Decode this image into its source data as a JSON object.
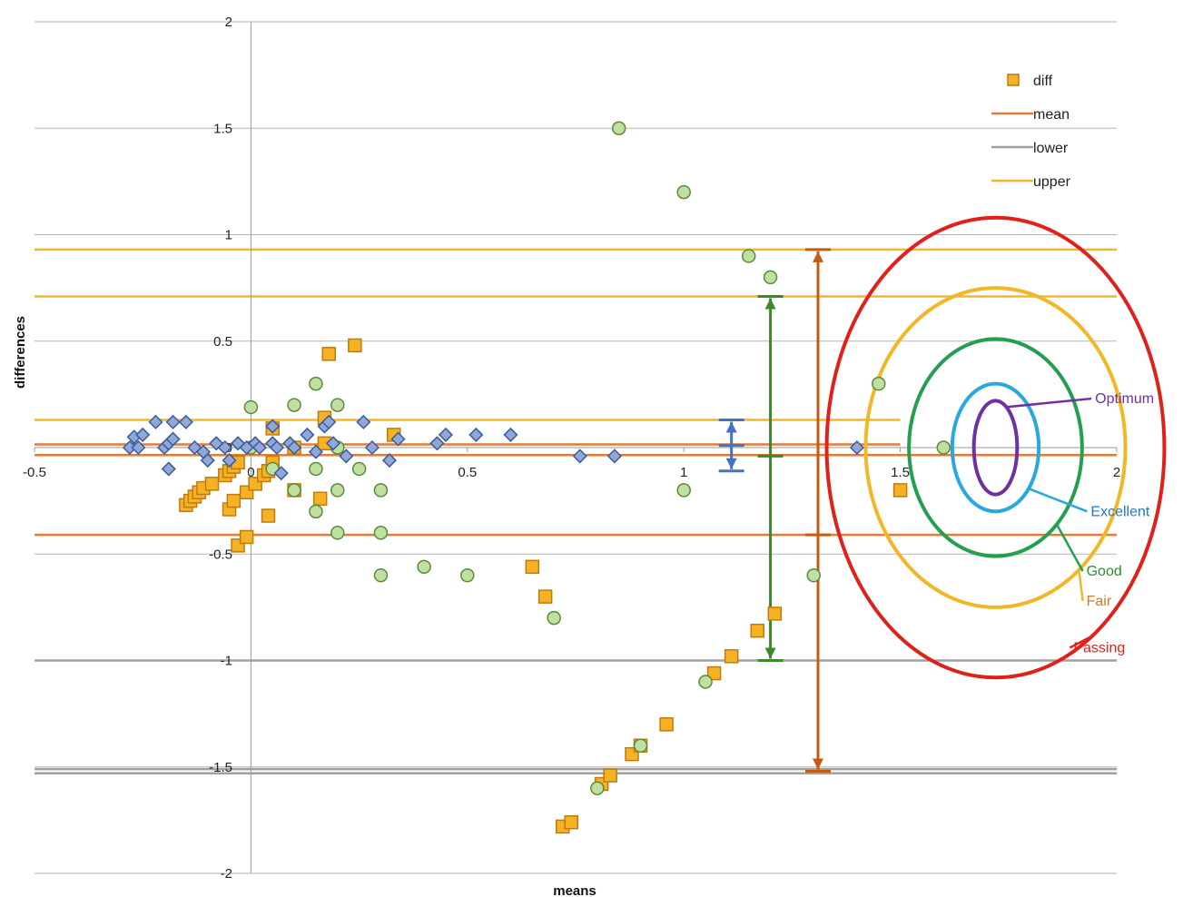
{
  "chart_data": {
    "type": "scatter",
    "xlabel": "means",
    "ylabel": "differences",
    "xlim": [
      -0.5,
      2
    ],
    "ylim": [
      -2,
      2
    ],
    "x_ticks": [
      "-0.5",
      "0",
      "0.5",
      "1",
      "1.5",
      "2"
    ],
    "y_ticks": [
      "2",
      "1.5",
      "1",
      "0.5",
      "0",
      "-0.5",
      "-1",
      "-1.5",
      "-2"
    ],
    "grid": true,
    "legend": {
      "position": "top-right",
      "entries": [
        {
          "label": "diff",
          "marker": "square",
          "color": "#f5b324"
        },
        {
          "label": "mean",
          "marker": "line",
          "color": "#e07b39"
        },
        {
          "label": "lower",
          "marker": "line",
          "color": "#a0a0a0"
        },
        {
          "label": "upper",
          "marker": "line",
          "color": "#f2b726"
        }
      ]
    },
    "reference_lines": [
      {
        "color": "#f2b726",
        "y": 0.93,
        "x_from": -0.5,
        "x_to": 2
      },
      {
        "color": "#f2b726",
        "y": 0.71,
        "x_from": -0.5,
        "x_to": 2
      },
      {
        "color": "#f2b726",
        "y": 0.13,
        "x_from": -0.5,
        "x_to": 1.5
      },
      {
        "color": "#e07b39",
        "y": 0.015,
        "x_from": -0.5,
        "x_to": 1.5
      },
      {
        "color": "#e07b39",
        "y": -0.035,
        "x_from": -0.5,
        "x_to": 2
      },
      {
        "color": "#e07b39",
        "y": -0.41,
        "x_from": -0.5,
        "x_to": 2
      },
      {
        "color": "#a0a0a0",
        "y": -1.0,
        "x_from": -0.5,
        "x_to": 2
      },
      {
        "color": "#a0a0a0",
        "y": -1.51,
        "x_from": -0.5,
        "x_to": 2
      },
      {
        "color": "#a0a0a0",
        "y": -1.53,
        "x_from": -0.5,
        "x_to": 2
      }
    ],
    "series": [
      {
        "name": "diff",
        "marker": "square",
        "fill": "#f5b324",
        "stroke": "#c07a10",
        "points": [
          [
            -0.15,
            -0.27
          ],
          [
            -0.14,
            -0.25
          ],
          [
            -0.13,
            -0.23
          ],
          [
            -0.12,
            -0.21
          ],
          [
            -0.11,
            -0.19
          ],
          [
            -0.09,
            -0.17
          ],
          [
            -0.06,
            -0.13
          ],
          [
            -0.05,
            -0.11
          ],
          [
            -0.04,
            -0.09
          ],
          [
            -0.03,
            -0.07
          ],
          [
            -0.05,
            -0.29
          ],
          [
            -0.04,
            -0.25
          ],
          [
            -0.01,
            -0.21
          ],
          [
            0.01,
            -0.17
          ],
          [
            0.03,
            -0.13
          ],
          [
            0.04,
            -0.11
          ],
          [
            0.05,
            -0.07
          ],
          [
            0.1,
            -0.2
          ],
          [
            0.04,
            -0.32
          ],
          [
            -0.03,
            -0.46
          ],
          [
            -0.01,
            -0.42
          ],
          [
            0.05,
            0.09
          ],
          [
            0.1,
            0.0
          ],
          [
            0.17,
            0.02
          ],
          [
            0.16,
            -0.24
          ],
          [
            0.17,
            0.14
          ],
          [
            0.18,
            0.44
          ],
          [
            0.24,
            0.48
          ],
          [
            0.33,
            0.06
          ],
          [
            0.65,
            -0.56
          ],
          [
            0.68,
            -0.7
          ],
          [
            0.72,
            -1.78
          ],
          [
            0.74,
            -1.76
          ],
          [
            0.81,
            -1.58
          ],
          [
            0.83,
            -1.54
          ],
          [
            0.88,
            -1.44
          ],
          [
            0.9,
            -1.4
          ],
          [
            0.96,
            -1.3
          ],
          [
            1.07,
            -1.06
          ],
          [
            1.11,
            -0.98
          ],
          [
            1.17,
            -0.86
          ],
          [
            1.21,
            -0.78
          ],
          [
            1.5,
            -0.2
          ]
        ]
      },
      {
        "marker": "circle",
        "fill": "#bfe0a0",
        "stroke": "#5a8a3a",
        "points": [
          [
            0.0,
            0.19
          ],
          [
            0.0,
            0.0
          ],
          [
            0.05,
            -0.1
          ],
          [
            0.1,
            0.2
          ],
          [
            0.1,
            -0.2
          ],
          [
            0.15,
            0.3
          ],
          [
            0.15,
            -0.1
          ],
          [
            0.15,
            -0.3
          ],
          [
            0.2,
            0.2
          ],
          [
            0.2,
            0.0
          ],
          [
            0.2,
            -0.2
          ],
          [
            0.2,
            -0.4
          ],
          [
            0.25,
            -0.1
          ],
          [
            0.3,
            -0.2
          ],
          [
            0.3,
            -0.4
          ],
          [
            0.3,
            -0.6
          ],
          [
            0.4,
            -0.56
          ],
          [
            0.5,
            -0.6
          ],
          [
            0.7,
            -0.8
          ],
          [
            0.85,
            1.5
          ],
          [
            1.0,
            1.2
          ],
          [
            1.0,
            -0.2
          ],
          [
            1.05,
            -1.1
          ],
          [
            1.15,
            0.9
          ],
          [
            1.2,
            0.8
          ],
          [
            1.3,
            -0.6
          ],
          [
            1.45,
            0.3
          ],
          [
            1.6,
            0.0
          ],
          [
            0.8,
            -1.6
          ],
          [
            0.9,
            -1.4
          ]
        ]
      },
      {
        "marker": "diamond",
        "fill": "#8fa8d8",
        "stroke": "#3a5a9a",
        "points": [
          [
            -0.28,
            0.0
          ],
          [
            -0.27,
            0.05
          ],
          [
            -0.26,
            0.0
          ],
          [
            -0.25,
            0.06
          ],
          [
            -0.22,
            0.12
          ],
          [
            -0.2,
            0.0
          ],
          [
            -0.19,
            0.02
          ],
          [
            -0.19,
            -0.1
          ],
          [
            -0.18,
            0.04
          ],
          [
            -0.18,
            0.12
          ],
          [
            -0.15,
            0.12
          ],
          [
            -0.13,
            0.0
          ],
          [
            -0.11,
            -0.02
          ],
          [
            -0.1,
            -0.06
          ],
          [
            -0.08,
            0.02
          ],
          [
            -0.06,
            0.0
          ],
          [
            -0.05,
            -0.06
          ],
          [
            -0.03,
            0.02
          ],
          [
            -0.01,
            0.0
          ],
          [
            0.01,
            0.02
          ],
          [
            0.02,
            0.0
          ],
          [
            0.05,
            0.02
          ],
          [
            0.05,
            0.1
          ],
          [
            0.06,
            0.0
          ],
          [
            0.07,
            -0.12
          ],
          [
            0.09,
            0.02
          ],
          [
            0.1,
            0.0
          ],
          [
            0.13,
            0.06
          ],
          [
            0.15,
            -0.02
          ],
          [
            0.17,
            0.1
          ],
          [
            0.18,
            0.12
          ],
          [
            0.19,
            0.02
          ],
          [
            0.22,
            -0.04
          ],
          [
            0.26,
            0.12
          ],
          [
            0.28,
            0.0
          ],
          [
            0.32,
            -0.06
          ],
          [
            0.34,
            0.04
          ],
          [
            0.43,
            0.02
          ],
          [
            0.45,
            0.06
          ],
          [
            0.52,
            0.06
          ],
          [
            0.6,
            0.06
          ],
          [
            0.76,
            -0.04
          ],
          [
            0.84,
            -0.04
          ],
          [
            1.4,
            0.0
          ]
        ]
      }
    ],
    "intervals": [
      {
        "x": 1.11,
        "y_top": 0.13,
        "y_bottom": -0.11,
        "y_mid": 0.01,
        "color": "#4472c4"
      },
      {
        "x": 1.2,
        "y_top": 0.71,
        "y_bottom": -1.0,
        "y_mid": -0.04,
        "color": "#3a8a2a"
      },
      {
        "x": 1.31,
        "y_top": 0.93,
        "y_bottom": -1.52,
        "y_mid": -0.41,
        "color": "#c55a11"
      }
    ],
    "target": {
      "center_x": 1.72,
      "center_y": 0.0,
      "rings": [
        {
          "label": "Optimum",
          "x_radius": 0.05,
          "y_radius": 0.22,
          "color": "#7030a0"
        },
        {
          "label": "Excellent",
          "x_radius": 0.1,
          "y_radius": 0.3,
          "color": "#29a8e0"
        },
        {
          "label": "Good",
          "x_radius": 0.2,
          "y_radius": 0.51,
          "color": "#22a050"
        },
        {
          "label": "Fair",
          "x_radius": 0.3,
          "y_radius": 0.75,
          "color": "#f2b726"
        },
        {
          "label": "Passing",
          "x_radius": 0.39,
          "y_radius": 1.08,
          "color": "#e0201b"
        }
      ],
      "label_colors": {
        "Optimum": "#7030a0",
        "Excellent": "#1f78c8",
        "Good": "#2e8b2e",
        "Fair": "#d07a2a",
        "Passing": "#e0201b"
      },
      "connectors": [
        {
          "label": "Optimum",
          "ring_angle_deg": -60,
          "label_x": 1.95,
          "label_y": 0.23
        },
        {
          "label": "Excellent",
          "ring_angle_deg": 40,
          "label_x": 1.94,
          "label_y": -0.3
        },
        {
          "label": "Good",
          "ring_angle_deg": 45,
          "label_x": 1.93,
          "label_y": -0.58
        },
        {
          "label": "Fair",
          "ring_angle_deg": 50,
          "label_x": 1.93,
          "label_y": -0.72
        },
        {
          "label": "Passing",
          "ring_angle_deg": 55,
          "label_x": 1.9,
          "label_y": -0.94
        }
      ]
    }
  }
}
